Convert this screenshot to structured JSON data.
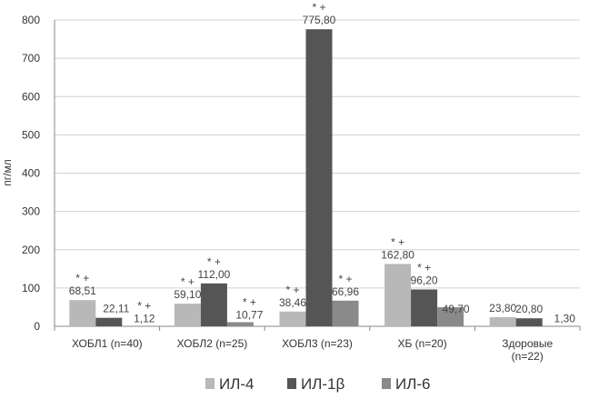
{
  "chart_data": {
    "type": "bar",
    "ylabel": "пг/мл",
    "ylim": [
      0,
      800
    ],
    "yticks": [
      0,
      100,
      200,
      300,
      400,
      500,
      600,
      700,
      800
    ],
    "grid": true,
    "legend_position": "bottom",
    "categories": [
      "ХОБЛ1 (n=40)",
      "ХОБЛ2 (n=25)",
      "ХОБЛ3 (n=23)",
      "ХБ (n=20)",
      "Здоровые (n=22)"
    ],
    "series": [
      {
        "name": "ИЛ-4",
        "color": "#b8b8b8",
        "values": [
          68.51,
          59.1,
          38.46,
          162.8,
          23.8
        ],
        "labels": [
          "68,51",
          "59,10",
          "38,46",
          "162,80",
          "23,80"
        ],
        "annotations": [
          "* +",
          "* +",
          "* +",
          "* +",
          ""
        ]
      },
      {
        "name": "ИЛ-1β",
        "color": "#555555",
        "values": [
          22.11,
          112.0,
          775.8,
          96.2,
          20.8
        ],
        "labels": [
          "22,11",
          "112,00",
          "775,80",
          "96,20",
          "20,80"
        ],
        "annotations": [
          "",
          "* +",
          "* +",
          "* +",
          ""
        ]
      },
      {
        "name": "ИЛ-6",
        "color": "#8a8a8a",
        "values": [
          1.12,
          10.77,
          66.96,
          49.7,
          1.3
        ],
        "labels": [
          "1,12",
          "10,77",
          "66,96",
          "49,70",
          "1,30"
        ],
        "annotations": [
          "* +",
          "* +",
          "* +",
          "",
          ""
        ]
      }
    ]
  }
}
